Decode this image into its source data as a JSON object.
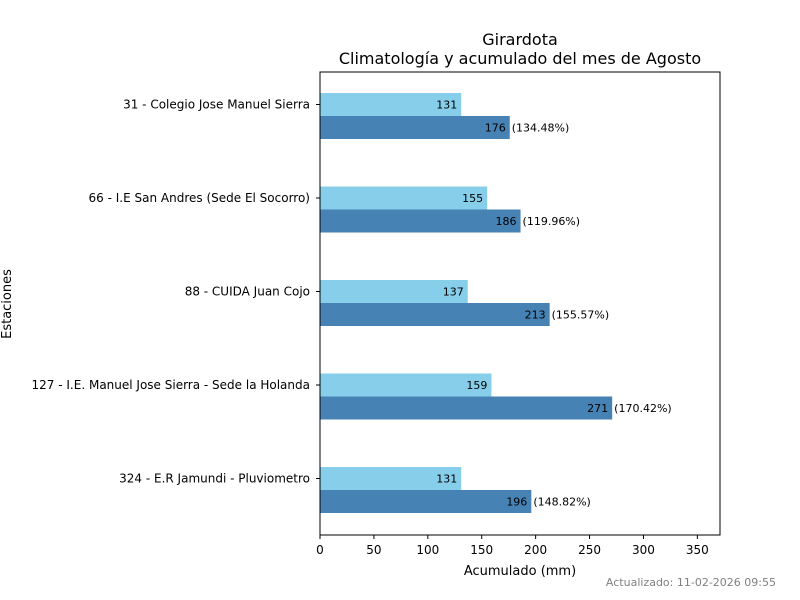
{
  "chart_data": {
    "type": "bar",
    "orientation": "horizontal",
    "title": "Girardota",
    "subtitle": "Climatología y acumulado del mes de Agosto",
    "xlabel": "Acumulado (mm)",
    "ylabel": "Estaciones",
    "xlim": [
      0,
      371
    ],
    "xticks": [
      0,
      50,
      100,
      150,
      200,
      250,
      300,
      350
    ],
    "grid": false,
    "categories": [
      "31 - Colegio Jose Manuel Sierra",
      "66 - I.E San Andres (Sede El Socorro)",
      "88 - CUIDA Juan Cojo",
      "127 - I.E. Manuel Jose Sierra - Sede la Holanda",
      "324 - E.R Jamundi - Pluviometro"
    ],
    "series": [
      {
        "name": "Climatología",
        "color": "#87ceeb",
        "values": [
          131,
          155,
          137,
          159,
          131
        ]
      },
      {
        "name": "Acumulado",
        "color": "#4682b4",
        "values": [
          176,
          186,
          213,
          271,
          196
        ],
        "percent_labels": [
          "(134.48%)",
          "(119.96%)",
          "(155.57%)",
          "(170.42%)",
          "(148.82%)"
        ]
      }
    ]
  },
  "footer": {
    "updated": "Actualizado: 11-02-2026 09:55"
  }
}
